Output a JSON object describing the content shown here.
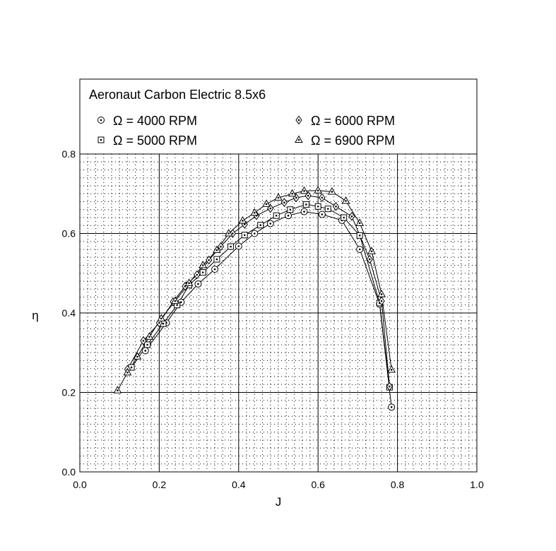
{
  "chart_data": {
    "type": "line",
    "title": "Aeronaut Carbon Electric 8.5x6",
    "xlabel": "J",
    "ylabel": "η",
    "xlim": [
      0.0,
      1.0
    ],
    "ylim": [
      0.0,
      0.8
    ],
    "xticks": [
      "0.0",
      "0.2",
      "0.4",
      "0.6",
      "0.8",
      "1.0"
    ],
    "yticks": [
      "0.0",
      "0.2",
      "0.4",
      "0.6",
      "0.8"
    ],
    "grid": true,
    "legend_position": "top",
    "series": [
      {
        "name": "Ω = 4000 RPM",
        "marker": "circle",
        "x": [
          0.165,
          0.218,
          0.255,
          0.298,
          0.34,
          0.4,
          0.44,
          0.48,
          0.525,
          0.565,
          0.61,
          0.66,
          0.705,
          0.755,
          0.785
        ],
        "y": [
          0.305,
          0.375,
          0.427,
          0.473,
          0.51,
          0.568,
          0.6,
          0.625,
          0.645,
          0.655,
          0.648,
          0.633,
          0.56,
          0.422,
          0.163
        ]
      },
      {
        "name": "Ω = 5000 RPM",
        "marker": "square",
        "x": [
          0.13,
          0.17,
          0.21,
          0.245,
          0.275,
          0.31,
          0.345,
          0.38,
          0.415,
          0.455,
          0.495,
          0.53,
          0.57,
          0.6,
          0.625,
          0.665,
          0.705,
          0.755,
          0.78
        ],
        "y": [
          0.263,
          0.32,
          0.373,
          0.42,
          0.47,
          0.502,
          0.535,
          0.567,
          0.596,
          0.621,
          0.645,
          0.66,
          0.673,
          0.668,
          0.662,
          0.64,
          0.595,
          0.425,
          0.213
        ]
      },
      {
        "name": "Ω = 6000 RPM",
        "marker": "diamond",
        "x": [
          0.12,
          0.16,
          0.2,
          0.235,
          0.265,
          0.295,
          0.325,
          0.355,
          0.385,
          0.415,
          0.445,
          0.48,
          0.515,
          0.545,
          0.575,
          0.61,
          0.645,
          0.685,
          0.73,
          0.76,
          0.78
        ],
        "y": [
          0.258,
          0.33,
          0.375,
          0.428,
          0.467,
          0.496,
          0.533,
          0.567,
          0.6,
          0.623,
          0.645,
          0.663,
          0.678,
          0.69,
          0.695,
          0.69,
          0.668,
          0.643,
          0.535,
          0.43,
          0.215
        ]
      },
      {
        "name": "Ω = 6900 RPM",
        "marker": "triangle",
        "x": [
          0.095,
          0.12,
          0.145,
          0.175,
          0.205,
          0.24,
          0.275,
          0.31,
          0.345,
          0.375,
          0.41,
          0.44,
          0.47,
          0.5,
          0.535,
          0.565,
          0.6,
          0.635,
          0.67,
          0.705,
          0.735,
          0.76,
          0.785
        ],
        "y": [
          0.205,
          0.25,
          0.29,
          0.34,
          0.386,
          0.43,
          0.475,
          0.52,
          0.558,
          0.6,
          0.632,
          0.652,
          0.674,
          0.69,
          0.7,
          0.707,
          0.708,
          0.705,
          0.682,
          0.626,
          0.555,
          0.447,
          0.257
        ]
      }
    ]
  }
}
